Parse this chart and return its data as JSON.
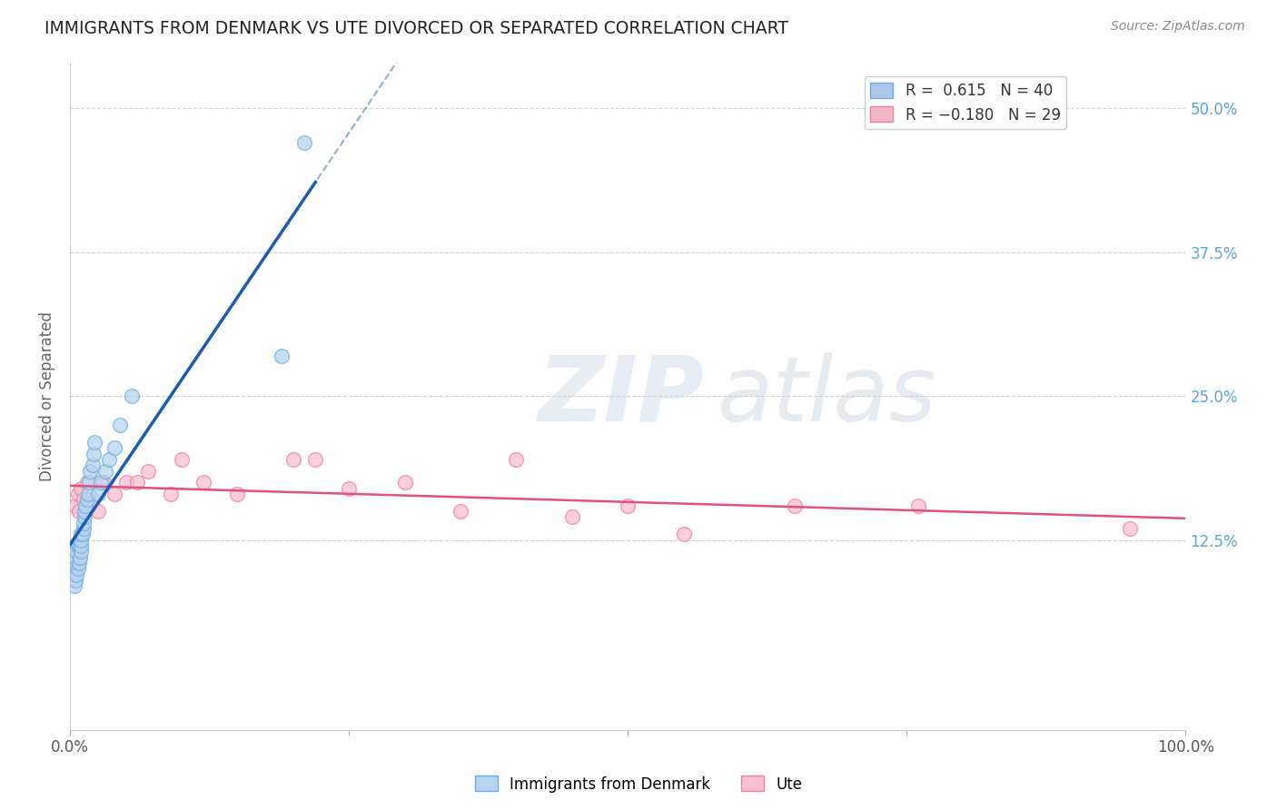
{
  "title": "IMMIGRANTS FROM DENMARK VS UTE DIVORCED OR SEPARATED CORRELATION CHART",
  "source": "Source: ZipAtlas.com",
  "ylabel": "Divorced or Separated",
  "xlim": [
    0,
    1.0
  ],
  "ylim": [
    -0.04,
    0.54
  ],
  "xtick_positions": [
    0.0,
    0.25,
    0.5,
    0.75,
    1.0
  ],
  "xtick_labels": [
    "0.0%",
    "",
    "",
    "",
    "100.0%"
  ],
  "ytick_vals": [
    0.125,
    0.25,
    0.375,
    0.5
  ],
  "ytick_labels_right": [
    "12.5%",
    "25.0%",
    "37.5%",
    "50.0%"
  ],
  "legend_entries": [
    {
      "label_r": "R = ",
      "r_val": " 0.615",
      "label_n": "   N = ",
      "n_val": "40",
      "color": "#aec6e8"
    },
    {
      "label_r": "R = ",
      "r_val": "-0.180",
      "label_n": "   N = ",
      "n_val": "29",
      "color": "#f4b8c8"
    }
  ],
  "blue_scatter_x": [
    0.002,
    0.003,
    0.004,
    0.004,
    0.005,
    0.005,
    0.006,
    0.006,
    0.007,
    0.007,
    0.008,
    0.008,
    0.009,
    0.009,
    0.01,
    0.01,
    0.01,
    0.01,
    0.011,
    0.012,
    0.012,
    0.013,
    0.013,
    0.014,
    0.015,
    0.016,
    0.017,
    0.018,
    0.02,
    0.021,
    0.022,
    0.025,
    0.028,
    0.032,
    0.035,
    0.04,
    0.045,
    0.055,
    0.19,
    0.21
  ],
  "blue_scatter_y": [
    0.095,
    0.1,
    0.085,
    0.105,
    0.09,
    0.11,
    0.095,
    0.115,
    0.1,
    0.12,
    0.105,
    0.12,
    0.11,
    0.125,
    0.115,
    0.12,
    0.125,
    0.13,
    0.13,
    0.135,
    0.14,
    0.145,
    0.15,
    0.155,
    0.16,
    0.165,
    0.175,
    0.185,
    0.19,
    0.2,
    0.21,
    0.165,
    0.175,
    0.185,
    0.195,
    0.205,
    0.225,
    0.25,
    0.285,
    0.47
  ],
  "pink_scatter_x": [
    0.005,
    0.007,
    0.008,
    0.01,
    0.012,
    0.015,
    0.02,
    0.025,
    0.03,
    0.04,
    0.05,
    0.06,
    0.07,
    0.09,
    0.1,
    0.12,
    0.15,
    0.2,
    0.22,
    0.25,
    0.3,
    0.35,
    0.4,
    0.45,
    0.5,
    0.55,
    0.65,
    0.76,
    0.95
  ],
  "pink_scatter_y": [
    0.155,
    0.165,
    0.15,
    0.17,
    0.16,
    0.175,
    0.16,
    0.15,
    0.175,
    0.165,
    0.175,
    0.175,
    0.185,
    0.165,
    0.195,
    0.175,
    0.165,
    0.195,
    0.195,
    0.17,
    0.175,
    0.15,
    0.195,
    0.145,
    0.155,
    0.13,
    0.155,
    0.155,
    0.135
  ],
  "blue_color": "#6aaee0",
  "pink_color": "#f080a0",
  "blue_fill": "#b8d4f0",
  "pink_fill": "#f8c0d0",
  "blue_line_color": "#1a5cb0",
  "pink_line_color": "#e05080",
  "background_color": "#ffffff",
  "grid_color": "#d0d0d0"
}
